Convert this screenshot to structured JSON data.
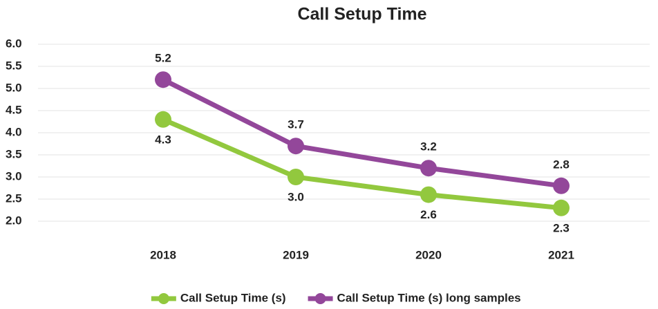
{
  "chart_data": {
    "type": "line",
    "title": "Call Setup Time",
    "categories": [
      "2018",
      "2019",
      "2020",
      "2021"
    ],
    "series": [
      {
        "name": "Call Setup Time (s)",
        "color": "#92c83e",
        "values": [
          4.3,
          3.0,
          2.6,
          2.3
        ],
        "value_labels": [
          "4.3",
          "3.0",
          "2.6",
          "2.3"
        ]
      },
      {
        "name": "Call Setup Time (s) long samples",
        "color": "#93479a",
        "values": [
          5.2,
          3.7,
          3.2,
          2.8
        ]
      }
    ],
    "ylim": [
      2.0,
      6.0
    ],
    "yticks": [
      {
        "value": 2,
        "label": "2.0"
      },
      2.5,
      {
        "value": 3,
        "label": "3.0"
      },
      3.5,
      {
        "value": 4,
        "label": "4.0"
      },
      4.5,
      {
        "value": 5,
        "label": "5.0"
      },
      5.5,
      {
        "value": 6,
        "label": "6.0"
      }
    ],
    "grid": true,
    "legend": "bottom"
  }
}
